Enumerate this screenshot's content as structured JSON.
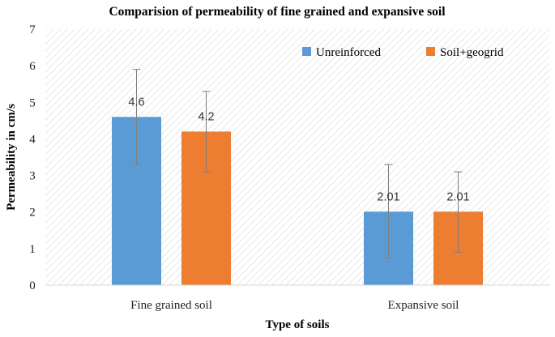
{
  "chart_data": {
    "type": "bar",
    "title": "Comparision of permeability of fine grained and expansive soil",
    "xlabel": "Type of soils",
    "ylabel": "Permeability in cm/s",
    "categories": [
      "Fine grained soil",
      "Expansive soil"
    ],
    "series": [
      {
        "name": "Unreinforced",
        "values": [
          4.6,
          2.01
        ],
        "labels": [
          "4.6",
          "2.01"
        ],
        "error_low": [
          3.3,
          0.75
        ],
        "error_high": [
          5.9,
          3.3
        ],
        "color": "#5B9BD5"
      },
      {
        "name": "Soil+geogrid",
        "values": [
          4.2,
          2.01
        ],
        "labels": [
          "4.2",
          "2.01"
        ],
        "error_low": [
          3.1,
          0.9
        ],
        "error_high": [
          5.3,
          3.1
        ],
        "color": "#ED7D31"
      }
    ],
    "ylim": [
      0,
      7
    ],
    "yticks": [
      "0",
      "1",
      "2",
      "3",
      "4",
      "5",
      "6",
      "7"
    ],
    "grid": false,
    "legend": "top-right"
  }
}
